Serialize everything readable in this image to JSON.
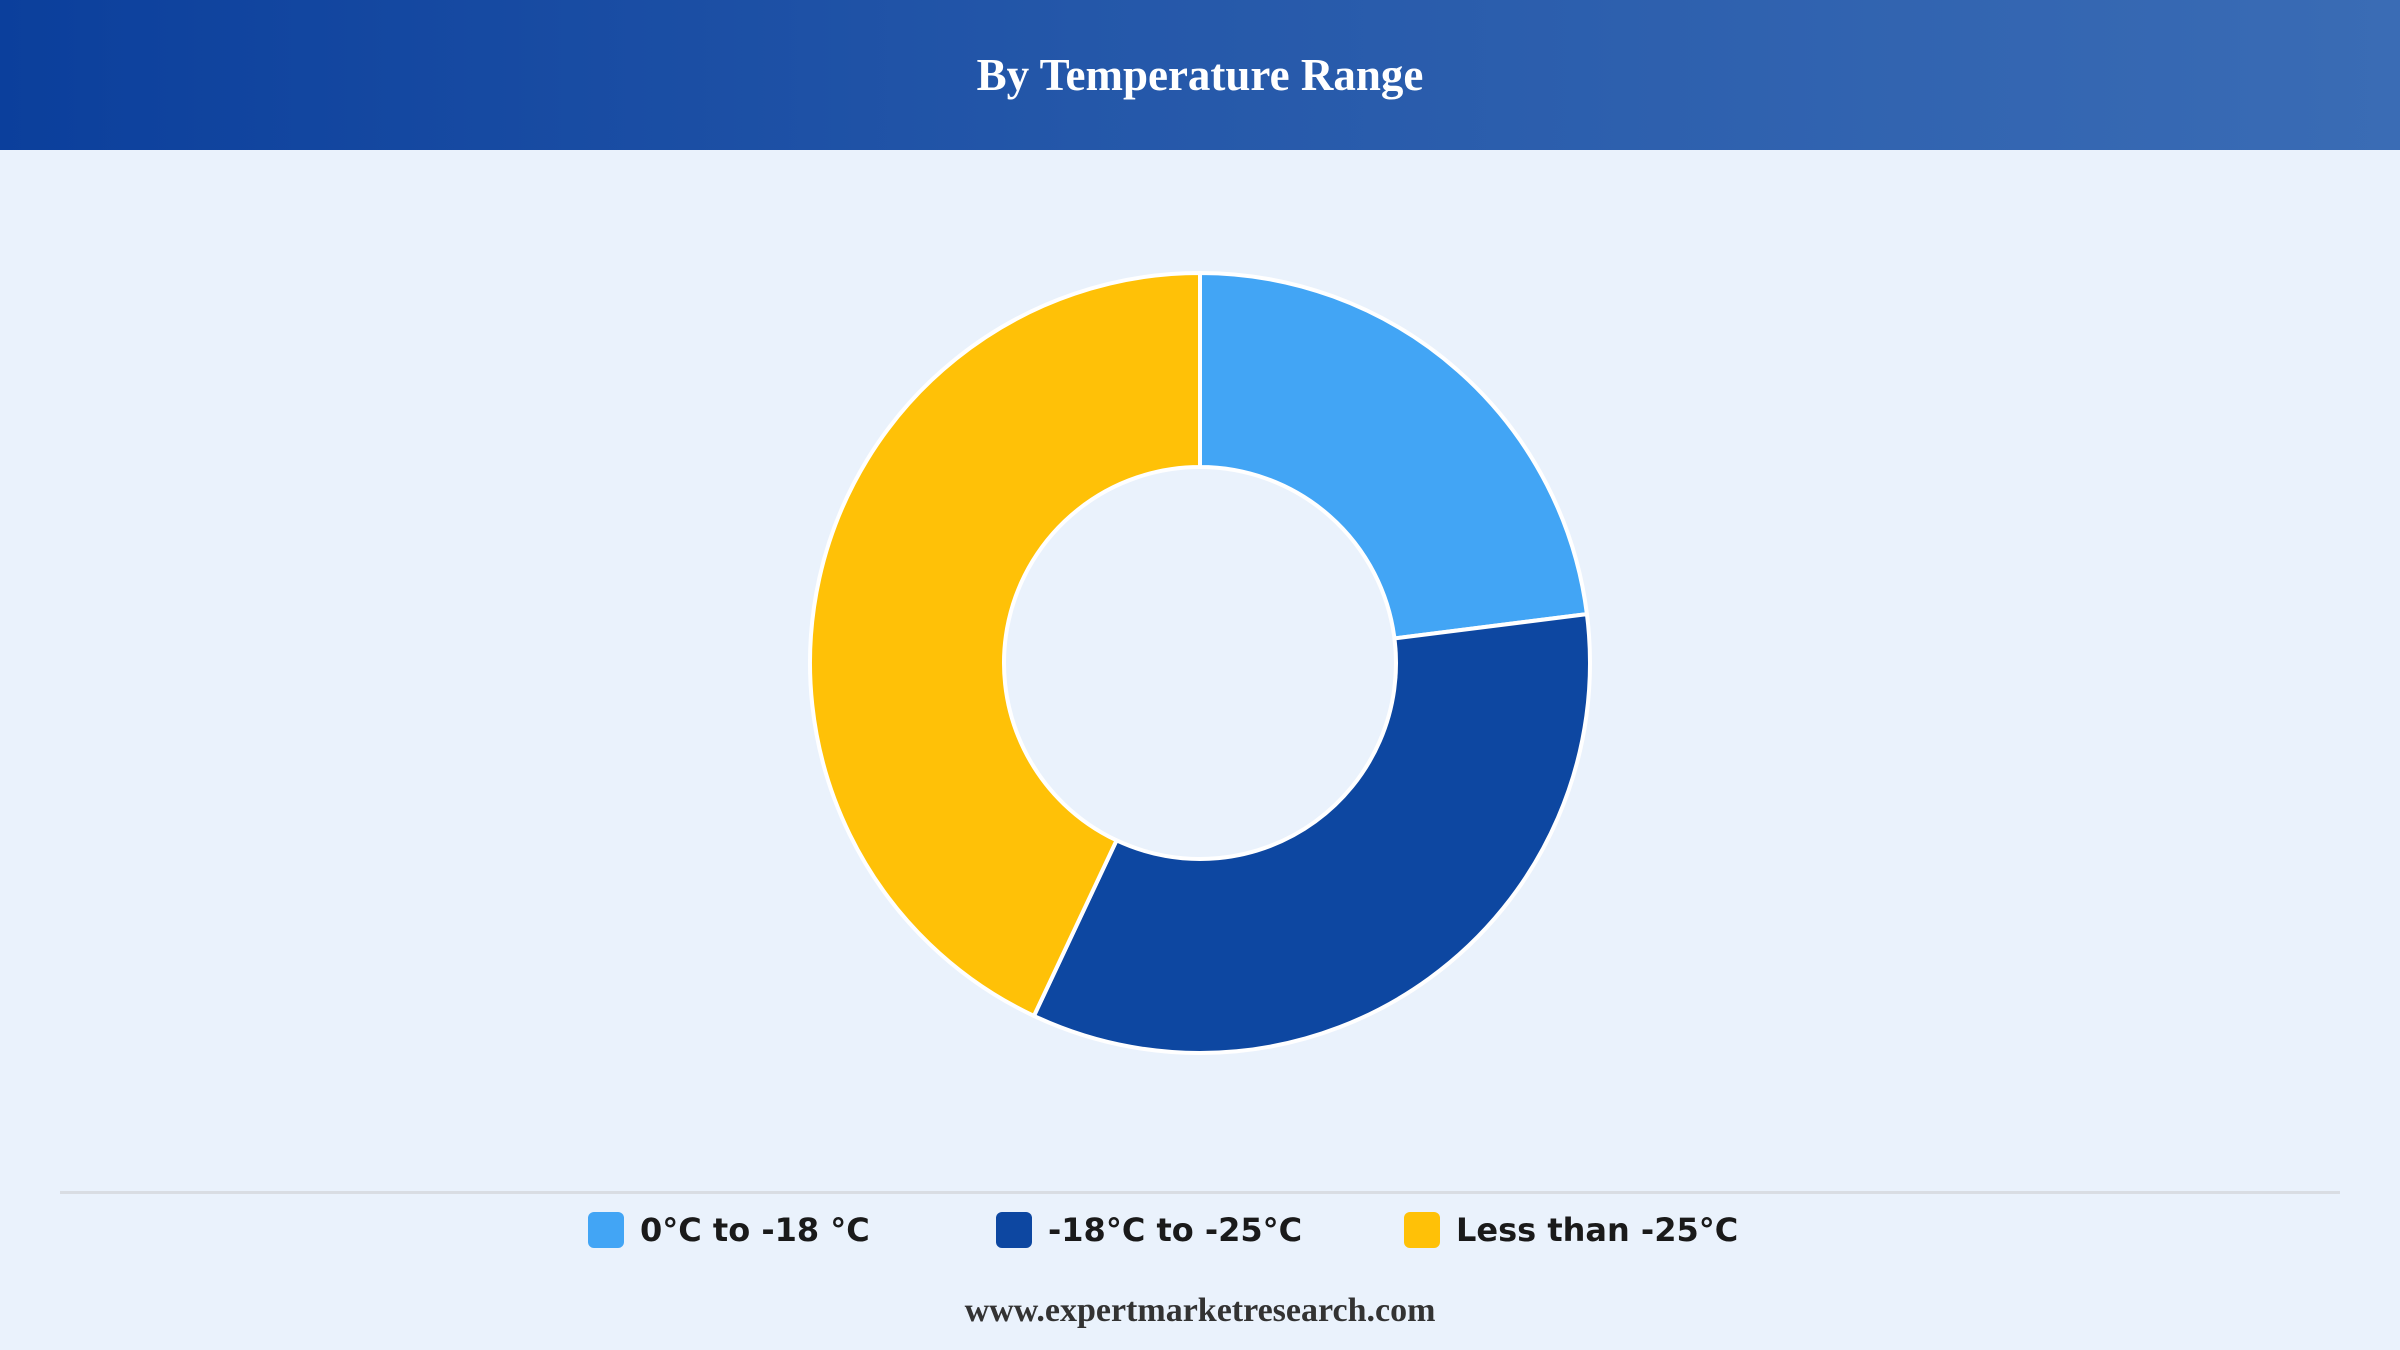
{
  "header": {
    "title": "By Temperature Range"
  },
  "chart_data": {
    "type": "pie",
    "variant": "donut",
    "title": "By Temperature Range",
    "categories": [
      "0°C to -18 °C",
      "-18°C to -25°C",
      "Less than -25°C"
    ],
    "values": [
      23,
      34,
      43
    ],
    "unit": "%",
    "colors": [
      "#42a5f5",
      "#0d47a1",
      "#ffc107"
    ],
    "slice_border_color": "#ffffff",
    "legend_position": "bottom"
  },
  "footer": {
    "source": "www.expertmarketresearch.com"
  }
}
